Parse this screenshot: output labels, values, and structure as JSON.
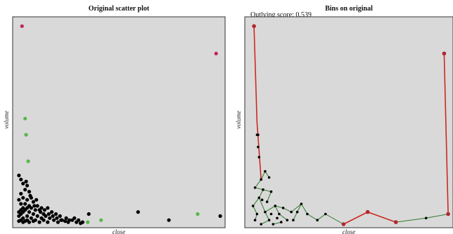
{
  "chart_data": [
    {
      "type": "scatter",
      "title": "Original scatter plot",
      "xlabel": "close",
      "ylabel": "volume",
      "xlim": [
        0,
        1
      ],
      "ylim": [
        0,
        1
      ],
      "grid": false,
      "colors": {
        "outlier": "#c0245c",
        "flagged": "#55b848",
        "normal": "#000000",
        "background": "#d9d9d9"
      },
      "series": [
        {
          "category": "outlier",
          "points": [
            [
              0.025,
              0.975
            ],
            [
              0.97,
              0.84
            ]
          ]
        },
        {
          "category": "flagged",
          "points": [
            [
              0.04,
              0.52
            ],
            [
              0.045,
              0.44
            ],
            [
              0.055,
              0.31
            ],
            [
              0.345,
              0.01
            ],
            [
              0.41,
              0.02
            ],
            [
              0.88,
              0.05
            ]
          ]
        },
        {
          "category": "normal",
          "points": [
            [
              0.01,
              0.24
            ],
            [
              0.02,
              0.22
            ],
            [
              0.03,
              0.2
            ],
            [
              0.05,
              0.19
            ],
            [
              0.04,
              0.17
            ],
            [
              0.06,
              0.16
            ],
            [
              0.02,
              0.15
            ],
            [
              0.03,
              0.13
            ],
            [
              0.07,
              0.13
            ],
            [
              0.01,
              0.12
            ],
            [
              0.05,
              0.12
            ],
            [
              0.08,
              0.11
            ],
            [
              0.02,
              0.1
            ],
            [
              0.04,
              0.1
            ],
            [
              0.06,
              0.09
            ],
            [
              0.1,
              0.09
            ],
            [
              0.03,
              0.08
            ],
            [
              0.05,
              0.08
            ],
            [
              0.07,
              0.08
            ],
            [
              0.12,
              0.08
            ],
            [
              0.15,
              0.08
            ],
            [
              0.02,
              0.07
            ],
            [
              0.04,
              0.07
            ],
            [
              0.09,
              0.07
            ],
            [
              0.11,
              0.07
            ],
            [
              0.17,
              0.06
            ],
            [
              0.01,
              0.06
            ],
            [
              0.03,
              0.06
            ],
            [
              0.06,
              0.06
            ],
            [
              0.08,
              0.05
            ],
            [
              0.13,
              0.05
            ],
            [
              0.19,
              0.05
            ],
            [
              0.02,
              0.05
            ],
            [
              0.05,
              0.04
            ],
            [
              0.1,
              0.04
            ],
            [
              0.14,
              0.04
            ],
            [
              0.21,
              0.04
            ],
            [
              0.01,
              0.04
            ],
            [
              0.03,
              0.03
            ],
            [
              0.07,
              0.03
            ],
            [
              0.12,
              0.03
            ],
            [
              0.16,
              0.03
            ],
            [
              0.24,
              0.03
            ],
            [
              0.02,
              0.02
            ],
            [
              0.05,
              0.02
            ],
            [
              0.09,
              0.02
            ],
            [
              0.13,
              0.02
            ],
            [
              0.18,
              0.02
            ],
            [
              0.22,
              0.02
            ],
            [
              0.27,
              0.02
            ],
            [
              0.01,
              0.015
            ],
            [
              0.04,
              0.015
            ],
            [
              0.08,
              0.015
            ],
            [
              0.11,
              0.01
            ],
            [
              0.15,
              0.01
            ],
            [
              0.2,
              0.01
            ],
            [
              0.25,
              0.01
            ],
            [
              0.29,
              0.01
            ],
            [
              0.31,
              0.005
            ],
            [
              0.03,
              0.01
            ],
            [
              0.06,
              0.01
            ],
            [
              0.35,
              0.05
            ],
            [
              0.59,
              0.06
            ],
            [
              0.74,
              0.02
            ],
            [
              0.99,
              0.04
            ],
            [
              0.065,
              0.14
            ],
            [
              0.045,
              0.21
            ],
            [
              0.085,
              0.09
            ],
            [
              0.095,
              0.12
            ],
            [
              0.115,
              0.06
            ],
            [
              0.135,
              0.07
            ],
            [
              0.155,
              0.05
            ],
            [
              0.175,
              0.04
            ],
            [
              0.195,
              0.03
            ],
            [
              0.215,
              0.02
            ],
            [
              0.235,
              0.015
            ],
            [
              0.255,
              0.02
            ],
            [
              0.28,
              0.03
            ],
            [
              0.3,
              0.02
            ],
            [
              0.32,
              0.01
            ]
          ]
        }
      ]
    },
    {
      "type": "line",
      "title": "Bins on original",
      "subtitle": "Outlying score: 0.539",
      "xlabel": "close",
      "ylabel": "volume",
      "xlim": [
        0,
        1
      ],
      "ylim": [
        0,
        1
      ],
      "colors": {
        "outlier_edge": "#cc2a20",
        "mst_edge": "#2d7a2a",
        "node": "#000000",
        "outlier_node": "#b3262e"
      },
      "red_edges": [
        [
          [
            0.025,
            0.975
          ],
          [
            0.04,
            0.5
          ]
        ],
        [
          [
            0.04,
            0.5
          ],
          [
            0.06,
            0.22
          ]
        ],
        [
          [
            0.97,
            0.84
          ],
          [
            0.99,
            0.05
          ]
        ],
        [
          [
            0.47,
            0.0
          ],
          [
            0.59,
            0.06
          ]
        ],
        [
          [
            0.59,
            0.06
          ],
          [
            0.73,
            0.01
          ]
        ]
      ],
      "green_edges": [
        [
          [
            0.04,
            0.5
          ],
          [
            0.045,
            0.44
          ]
        ],
        [
          [
            0.06,
            0.22
          ],
          [
            0.08,
            0.26
          ]
        ],
        [
          [
            0.06,
            0.22
          ],
          [
            0.03,
            0.18
          ]
        ],
        [
          [
            0.08,
            0.26
          ],
          [
            0.1,
            0.23
          ]
        ],
        [
          [
            0.03,
            0.18
          ],
          [
            0.07,
            0.17
          ]
        ],
        [
          [
            0.07,
            0.17
          ],
          [
            0.11,
            0.16
          ]
        ],
        [
          [
            0.07,
            0.17
          ],
          [
            0.05,
            0.13
          ]
        ],
        [
          [
            0.11,
            0.16
          ],
          [
            0.09,
            0.11
          ]
        ],
        [
          [
            0.05,
            0.13
          ],
          [
            0.02,
            0.09
          ]
        ],
        [
          [
            0.05,
            0.13
          ],
          [
            0.08,
            0.06
          ]
        ],
        [
          [
            0.02,
            0.09
          ],
          [
            0.04,
            0.05
          ]
        ],
        [
          [
            0.04,
            0.05
          ],
          [
            0.03,
            0.02
          ]
        ],
        [
          [
            0.08,
            0.06
          ],
          [
            0.13,
            0.09
          ]
        ],
        [
          [
            0.13,
            0.09
          ],
          [
            0.15,
            0.05
          ]
        ],
        [
          [
            0.13,
            0.09
          ],
          [
            0.17,
            0.08
          ]
        ],
        [
          [
            0.17,
            0.08
          ],
          [
            0.21,
            0.06
          ]
        ],
        [
          [
            0.08,
            0.06
          ],
          [
            0.1,
            0.02
          ]
        ],
        [
          [
            0.15,
            0.05
          ],
          [
            0.19,
            0.02
          ]
        ],
        [
          [
            0.21,
            0.06
          ],
          [
            0.26,
            0.1
          ]
        ],
        [
          [
            0.26,
            0.1
          ],
          [
            0.24,
            0.06
          ]
        ],
        [
          [
            0.24,
            0.06
          ],
          [
            0.22,
            0.02
          ]
        ],
        [
          [
            0.26,
            0.1
          ],
          [
            0.29,
            0.05
          ]
        ],
        [
          [
            0.29,
            0.05
          ],
          [
            0.34,
            0.02
          ]
        ],
        [
          [
            0.34,
            0.02
          ],
          [
            0.38,
            0.05
          ]
        ],
        [
          [
            0.38,
            0.05
          ],
          [
            0.47,
            0.0
          ]
        ],
        [
          [
            0.73,
            0.01
          ],
          [
            0.88,
            0.03
          ]
        ],
        [
          [
            0.88,
            0.03
          ],
          [
            0.99,
            0.05
          ]
        ],
        [
          [
            0.12,
            0.0
          ],
          [
            0.16,
            0.01
          ]
        ],
        [
          [
            0.06,
            0.0
          ],
          [
            0.1,
            0.02
          ]
        ]
      ],
      "nodes": [
        [
          0.04,
          0.44
        ],
        [
          0.045,
          0.38
        ],
        [
          0.05,
          0.33
        ],
        [
          0.06,
          0.22
        ],
        [
          0.08,
          0.26
        ],
        [
          0.1,
          0.23
        ],
        [
          0.03,
          0.18
        ],
        [
          0.07,
          0.17
        ],
        [
          0.11,
          0.16
        ],
        [
          0.05,
          0.13
        ],
        [
          0.09,
          0.11
        ],
        [
          0.02,
          0.09
        ],
        [
          0.08,
          0.06
        ],
        [
          0.04,
          0.05
        ],
        [
          0.03,
          0.02
        ],
        [
          0.13,
          0.09
        ],
        [
          0.15,
          0.05
        ],
        [
          0.17,
          0.08
        ],
        [
          0.21,
          0.06
        ],
        [
          0.1,
          0.02
        ],
        [
          0.19,
          0.02
        ],
        [
          0.26,
          0.1
        ],
        [
          0.24,
          0.06
        ],
        [
          0.22,
          0.02
        ],
        [
          0.29,
          0.05
        ],
        [
          0.34,
          0.02
        ],
        [
          0.38,
          0.05
        ],
        [
          0.12,
          0.0
        ],
        [
          0.16,
          0.01
        ],
        [
          0.06,
          0.0
        ],
        [
          0.88,
          0.03
        ],
        [
          0.045,
          0.44
        ],
        [
          0.065,
          0.12
        ],
        [
          0.11,
          0.05
        ],
        [
          0.14,
          0.03
        ]
      ],
      "outlier_nodes": [
        [
          0.025,
          0.975
        ],
        [
          0.97,
          0.84
        ],
        [
          0.47,
          0.0
        ],
        [
          0.59,
          0.06
        ],
        [
          0.73,
          0.01
        ],
        [
          0.99,
          0.05
        ]
      ]
    }
  ]
}
